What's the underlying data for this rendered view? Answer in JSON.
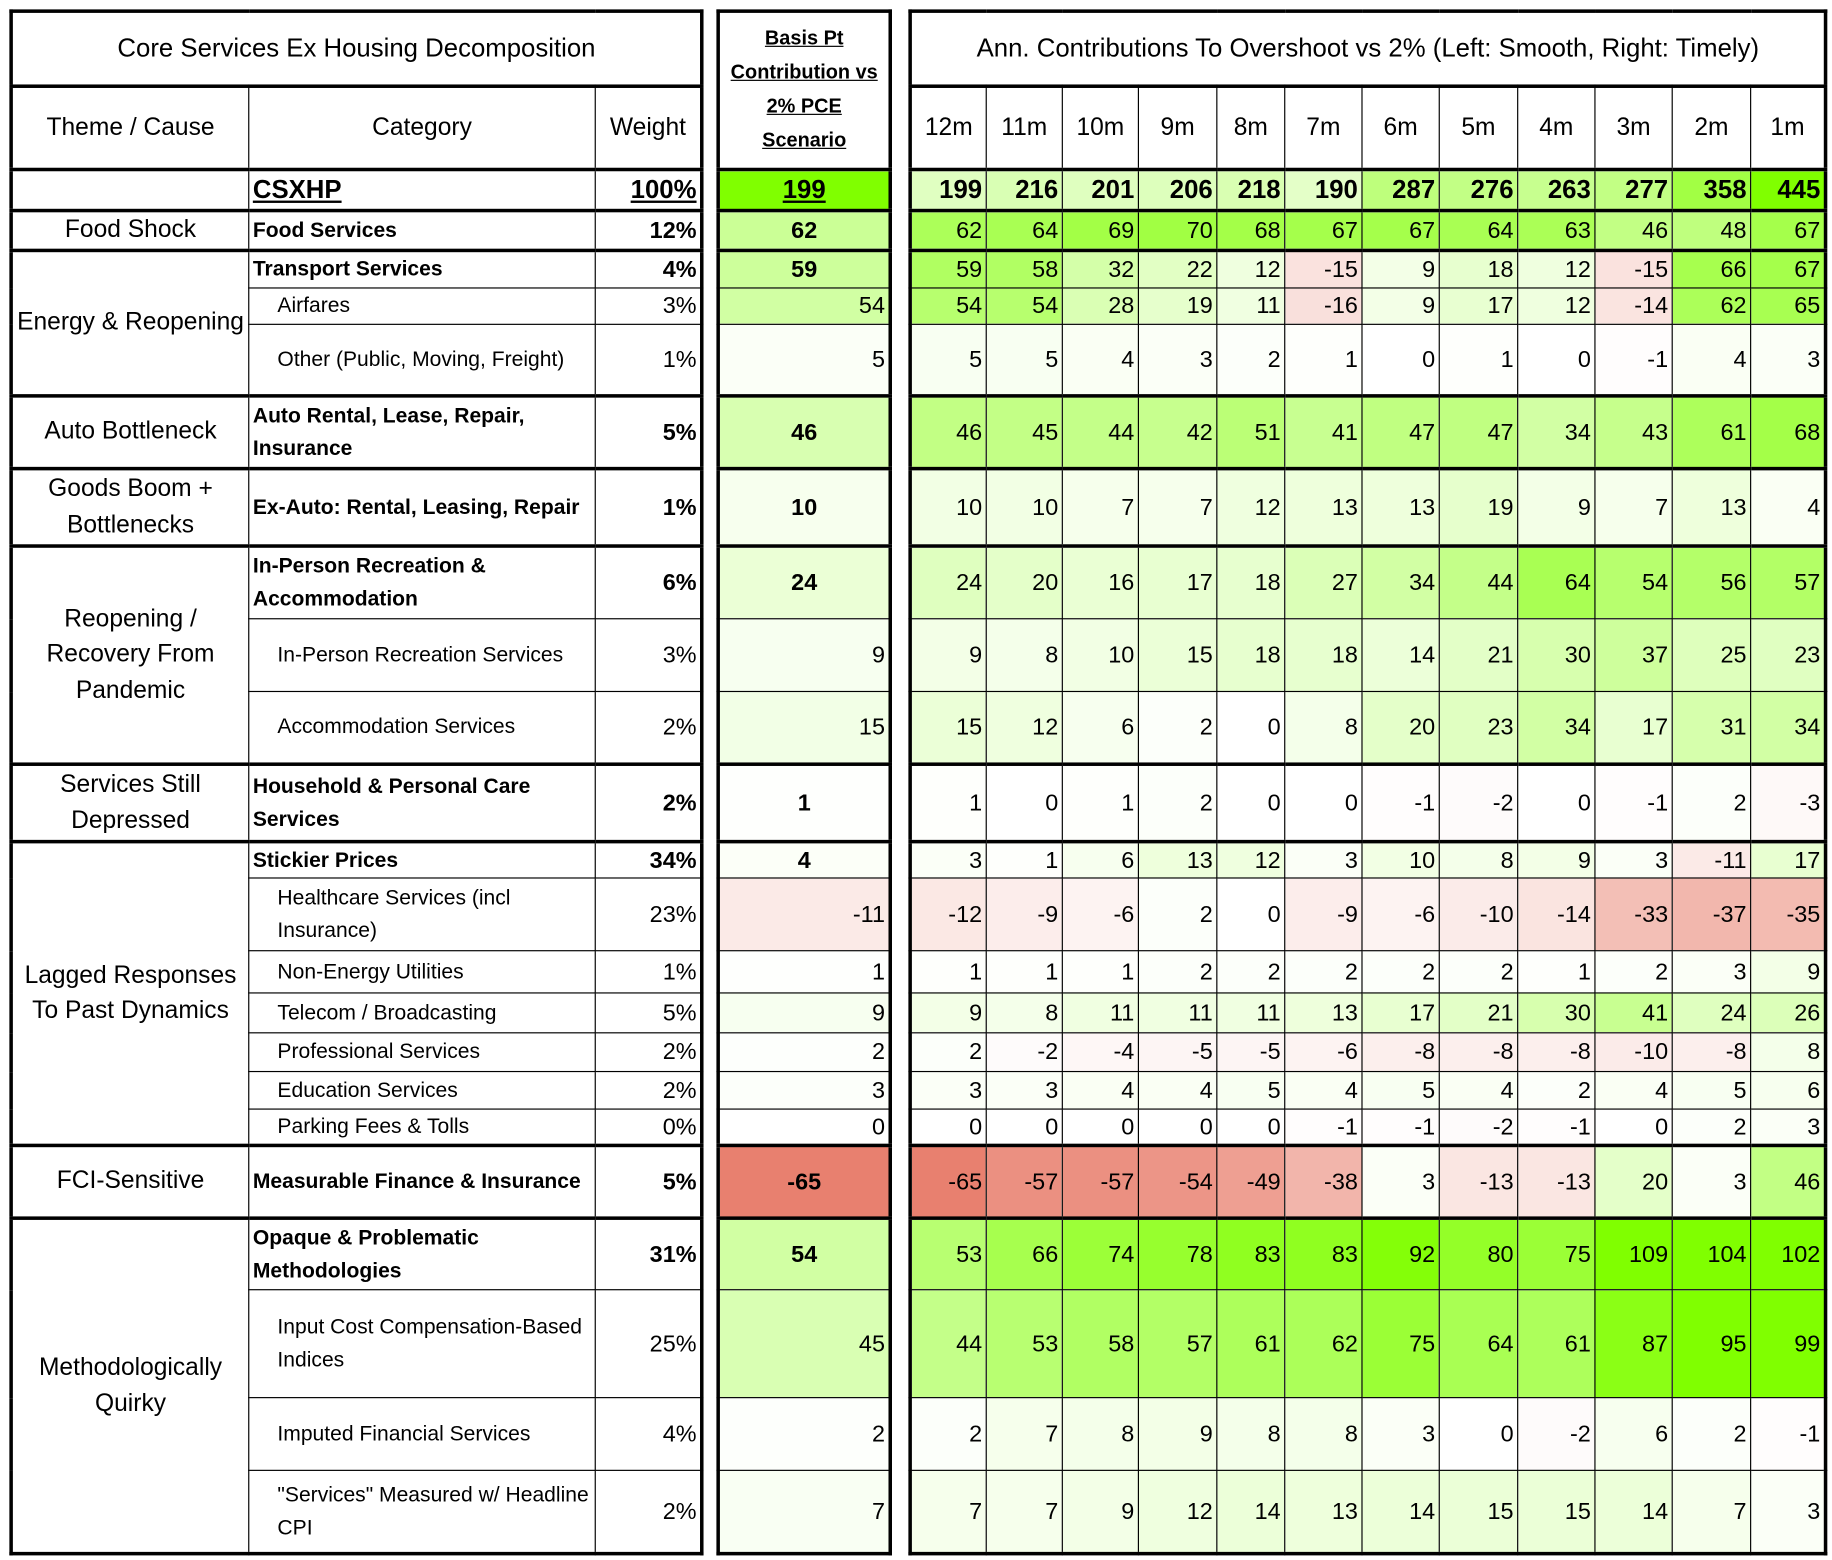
{
  "left": {
    "title": "Core Services Ex Housing Decomposition",
    "headers": {
      "theme": "Theme / Cause",
      "category": "Category",
      "weight": "Weight"
    }
  },
  "basis": {
    "header": "Basis Pt Contribution vs 2% PCE Scenario"
  },
  "right": {
    "title": "Ann. Contributions To Overshoot vs 2% (Left: Smooth, Right: Timely)",
    "columns": [
      "12m",
      "11m",
      "10m",
      "9m",
      "8m",
      "7m",
      "6m",
      "5m",
      "4m",
      "3m",
      "2m",
      "1m"
    ]
  },
  "colors": {
    "positive": "#80ff00",
    "negative": "#e8806f",
    "neutral": "#ffffff"
  },
  "total": {
    "category": "CSXHP",
    "weight": "100%",
    "basis": 199,
    "values": [
      199,
      216,
      201,
      206,
      218,
      190,
      287,
      276,
      263,
      277,
      358,
      445
    ]
  },
  "themes": [
    {
      "label": "Food Shock",
      "rows": [
        {
          "category": "Food Services",
          "bold": true,
          "weight": "12%",
          "basis": 62,
          "values": [
            62,
            64,
            69,
            70,
            68,
            67,
            67,
            64,
            63,
            46,
            48,
            67
          ]
        }
      ]
    },
    {
      "label": "Energy & Reopening",
      "rows": [
        {
          "category": "Transport Services",
          "bold": true,
          "weight": "4%",
          "basis": 59,
          "values": [
            59,
            58,
            32,
            22,
            12,
            -15,
            9,
            18,
            12,
            -15,
            66,
            67
          ]
        },
        {
          "category": "Airfares",
          "bold": false,
          "weight": "3%",
          "basis": 54,
          "values": [
            54,
            54,
            28,
            19,
            11,
            -16,
            9,
            17,
            12,
            -14,
            62,
            65
          ]
        },
        {
          "category": "Other (Public, Moving, Freight)",
          "bold": false,
          "weight": "1%",
          "basis": 5,
          "values": [
            5,
            5,
            4,
            3,
            2,
            1,
            0,
            1,
            0,
            -1,
            4,
            3
          ]
        }
      ]
    },
    {
      "label": "Auto Bottleneck",
      "rows": [
        {
          "category": "Auto Rental, Lease, Repair, Insurance",
          "bold": true,
          "weight": "5%",
          "basis": 46,
          "values": [
            46,
            45,
            44,
            42,
            51,
            41,
            47,
            47,
            34,
            43,
            61,
            68
          ]
        }
      ]
    },
    {
      "label": "Goods Boom + Bottlenecks",
      "rows": [
        {
          "category": "Ex-Auto: Rental, Leasing, Repair",
          "bold": true,
          "weight": "1%",
          "basis": 10,
          "values": [
            10,
            10,
            7,
            7,
            12,
            13,
            13,
            19,
            9,
            7,
            13,
            4
          ]
        }
      ]
    },
    {
      "label": "Reopening / Recovery From Pandemic",
      "rows": [
        {
          "category": "In-Person Recreation & Accommodation",
          "bold": true,
          "weight": "6%",
          "basis": 24,
          "values": [
            24,
            20,
            16,
            17,
            18,
            27,
            34,
            44,
            64,
            54,
            56,
            57
          ]
        },
        {
          "category": "In-Person Recreation Services",
          "bold": false,
          "weight": "3%",
          "basis": 9,
          "values": [
            9,
            8,
            10,
            15,
            18,
            18,
            14,
            21,
            30,
            37,
            25,
            23
          ]
        },
        {
          "category": "Accommodation Services",
          "bold": false,
          "weight": "2%",
          "basis": 15,
          "values": [
            15,
            12,
            6,
            2,
            0,
            8,
            20,
            23,
            34,
            17,
            31,
            34
          ]
        }
      ]
    },
    {
      "label": "Services Still Depressed",
      "rows": [
        {
          "category": "Household & Personal Care Services",
          "bold": true,
          "weight": "2%",
          "basis": 1,
          "values": [
            1,
            0,
            1,
            2,
            0,
            0,
            -1,
            -2,
            0,
            -1,
            2,
            -3
          ]
        }
      ]
    },
    {
      "label": "Lagged Responses To Past Dynamics",
      "rows": [
        {
          "category": "Stickier Prices",
          "bold": true,
          "weight": "34%",
          "basis": 4,
          "values": [
            3,
            1,
            6,
            13,
            12,
            3,
            10,
            8,
            9,
            3,
            -11,
            17
          ]
        },
        {
          "category": "Healthcare Services (incl Insurance)",
          "bold": false,
          "weight": "23%",
          "basis": -11,
          "values": [
            -12,
            -9,
            -6,
            2,
            0,
            -9,
            -6,
            -10,
            -14,
            -33,
            -37,
            -35
          ]
        },
        {
          "category": "Non-Energy Utilities",
          "bold": false,
          "weight": "1%",
          "basis": 1,
          "values": [
            1,
            1,
            1,
            2,
            2,
            2,
            2,
            2,
            1,
            2,
            3,
            9
          ]
        },
        {
          "category": "Telecom / Broadcasting",
          "bold": false,
          "weight": "5%",
          "basis": 9,
          "values": [
            9,
            8,
            11,
            11,
            11,
            13,
            17,
            21,
            30,
            41,
            24,
            26
          ]
        },
        {
          "category": "Professional Services",
          "bold": false,
          "weight": "2%",
          "basis": 2,
          "values": [
            2,
            -2,
            -4,
            -5,
            -5,
            -6,
            -8,
            -8,
            -8,
            -10,
            -8,
            8
          ]
        },
        {
          "category": "Education Services",
          "bold": false,
          "weight": "2%",
          "basis": 3,
          "values": [
            3,
            3,
            4,
            4,
            5,
            4,
            5,
            4,
            2,
            4,
            5,
            6
          ]
        },
        {
          "category": "Parking Fees & Tolls",
          "bold": false,
          "weight": "0%",
          "basis": 0,
          "values": [
            0,
            0,
            0,
            0,
            0,
            -1,
            -1,
            -2,
            -1,
            0,
            2,
            3
          ]
        }
      ]
    },
    {
      "label": "FCI-Sensitive",
      "rows": [
        {
          "category": "Measurable Finance & Insurance",
          "bold": true,
          "weight": "5%",
          "basis": -65,
          "values": [
            -65,
            -57,
            -57,
            -54,
            -49,
            -38,
            3,
            -13,
            -13,
            20,
            3,
            46
          ]
        }
      ]
    },
    {
      "label": "Methodologically Quirky",
      "rows": [
        {
          "category": "Opaque & Problematic Methodologies",
          "bold": true,
          "weight": "31%",
          "basis": 54,
          "values": [
            53,
            66,
            74,
            78,
            83,
            83,
            92,
            80,
            75,
            109,
            104,
            102
          ]
        },
        {
          "category": "Input Cost Compensation-Based Indices",
          "bold": false,
          "weight": "25%",
          "basis": 45,
          "values": [
            44,
            53,
            58,
            57,
            61,
            62,
            75,
            64,
            61,
            87,
            95,
            99
          ]
        },
        {
          "category": "Imputed Financial Services",
          "bold": false,
          "weight": "4%",
          "basis": 2,
          "values": [
            2,
            7,
            8,
            9,
            8,
            8,
            3,
            0,
            -2,
            6,
            2,
            -1
          ]
        },
        {
          "category": "\"Services\" Measured w/ Headline CPI",
          "bold": false,
          "weight": "2%",
          "basis": 7,
          "values": [
            7,
            7,
            9,
            12,
            14,
            13,
            14,
            15,
            15,
            14,
            7,
            3
          ]
        }
      ]
    }
  ]
}
